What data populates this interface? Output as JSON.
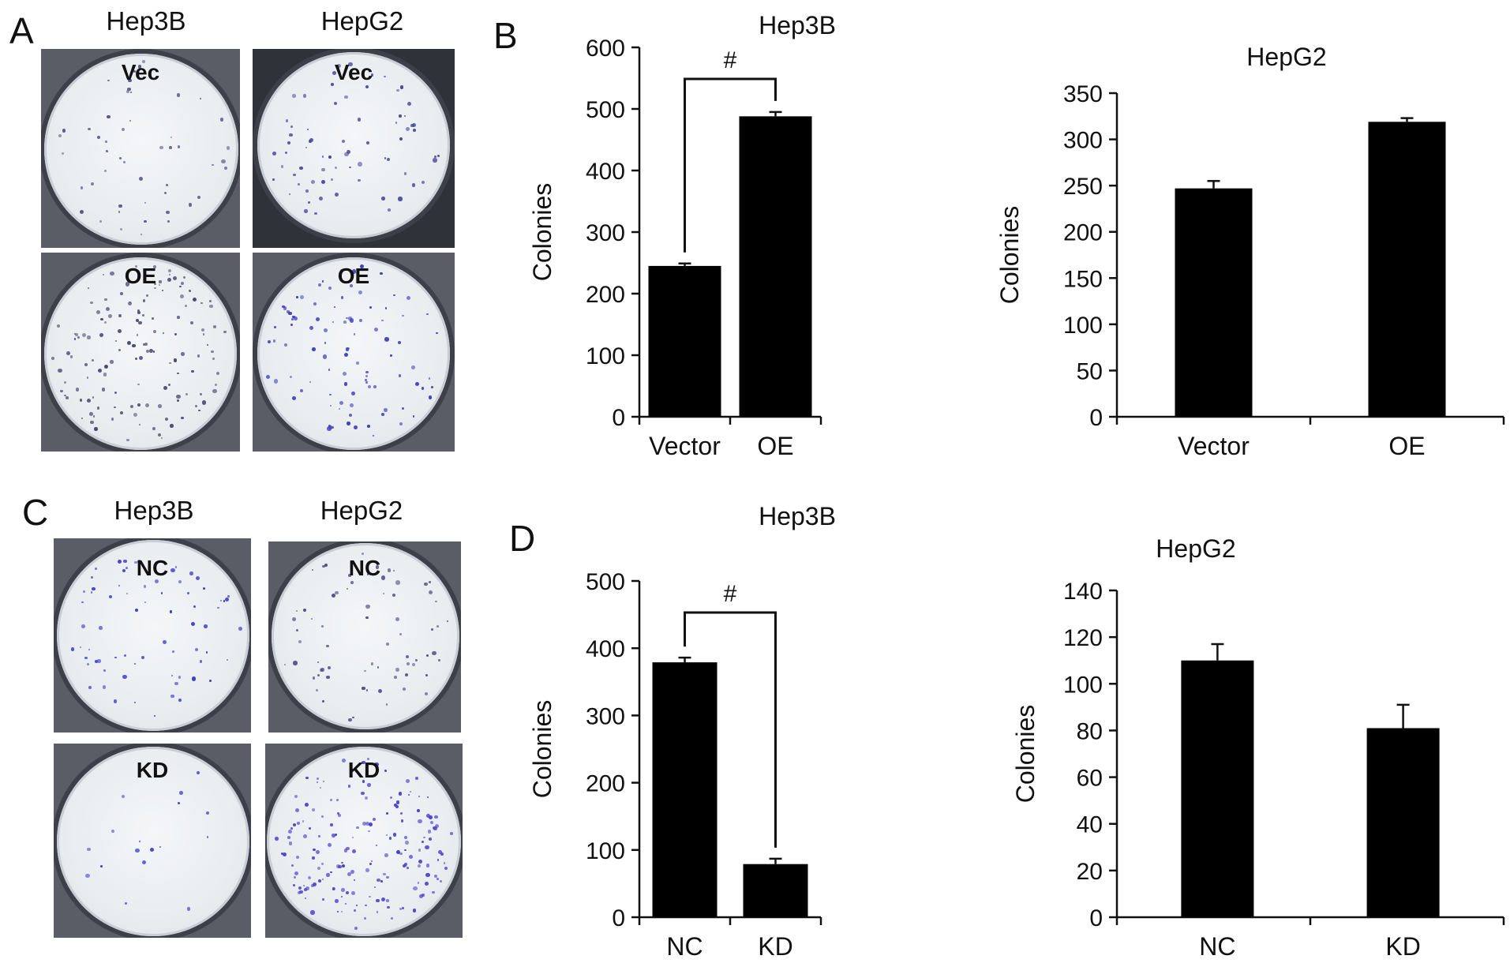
{
  "panels": {
    "A": {
      "letter": "A",
      "columns": [
        "Hep3B",
        "HepG2"
      ],
      "dishes": [
        {
          "label": "Vec",
          "density": 0.35,
          "tint": "#5a5a8a"
        },
        {
          "label": "Vec",
          "density": 0.5,
          "tint": "#4a4aa0"
        },
        {
          "label": "OE",
          "density": 1.0,
          "tint": "#4a4a70"
        },
        {
          "label": "OE",
          "density": 0.7,
          "tint": "#4040c0"
        }
      ]
    },
    "B": {
      "letter": "B"
    },
    "C": {
      "letter": "C",
      "columns": [
        "Hep3B",
        "HepG2"
      ],
      "dishes": [
        {
          "label": "NC",
          "density": 0.5,
          "tint": "#3b3bd0"
        },
        {
          "label": "NC",
          "density": 0.5,
          "tint": "#4a4a80"
        },
        {
          "label": "KD",
          "density": 0.12,
          "tint": "#3b3bd0"
        },
        {
          "label": "KD",
          "density": 1.3,
          "tint": "#4a40d0"
        }
      ]
    },
    "D": {
      "letter": "D"
    }
  },
  "chart_data": [
    {
      "panel": "B",
      "type": "bar",
      "title": "Hep3B",
      "ylabel": "Colonies",
      "categories": [
        "Vector",
        "OE"
      ],
      "values": [
        245,
        488
      ],
      "errors": [
        4,
        7
      ],
      "ylim": [
        0,
        600
      ],
      "yticks": [
        0,
        100,
        200,
        300,
        400,
        500,
        600
      ],
      "significance": {
        "symbol": "#",
        "from": 0,
        "to": 1
      },
      "bar_color": "#000000"
    },
    {
      "panel": "B",
      "type": "bar",
      "title": "HepG2",
      "ylabel": "Colonies",
      "categories": [
        "Vector",
        "OE"
      ],
      "values": [
        247,
        319
      ],
      "errors": [
        8,
        4
      ],
      "ylim": [
        0,
        350
      ],
      "yticks": [
        0,
        50,
        100,
        150,
        200,
        250,
        300,
        350
      ],
      "bar_color": "#000000"
    },
    {
      "panel": "D",
      "type": "bar",
      "title": "Hep3B",
      "ylabel": "Colonies",
      "categories": [
        "NC",
        "KD"
      ],
      "values": [
        379,
        79
      ],
      "errors": [
        7,
        8
      ],
      "ylim": [
        0,
        500
      ],
      "yticks": [
        0,
        100,
        200,
        300,
        400,
        500
      ],
      "significance": {
        "symbol": "#",
        "from": 0,
        "to": 1
      },
      "bar_color": "#000000"
    },
    {
      "panel": "D",
      "type": "bar",
      "title": "HepG2",
      "ylabel": "Colonies",
      "categories": [
        "NC",
        "KD"
      ],
      "values": [
        110,
        81
      ],
      "errors": [
        7,
        10
      ],
      "ylim": [
        0,
        140
      ],
      "yticks": [
        0,
        20,
        40,
        60,
        80,
        100,
        120,
        140
      ],
      "bar_color": "#000000"
    }
  ]
}
